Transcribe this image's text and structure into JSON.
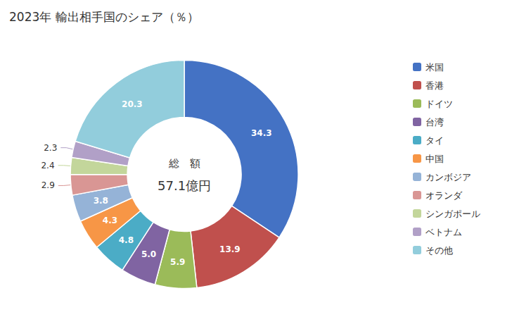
{
  "chart_data": {
    "type": "pie",
    "title": "2023年 輸出相手国のシェア（％）",
    "annotations": [
      "総　額",
      "57.1億円"
    ],
    "categories": [
      "米国",
      "香港",
      "ドイツ",
      "台湾",
      "タイ",
      "中国",
      "カンボジア",
      "オランダ",
      "シンガポール",
      "ベトナム",
      "その他"
    ],
    "values": [
      34.3,
      13.9,
      5.9,
      5.0,
      4.8,
      4.3,
      3.8,
      2.9,
      2.4,
      2.3,
      20.3
    ],
    "value_labels": [
      "34.3",
      "13.9",
      "5.9",
      "5.0",
      "4.8",
      "4.3",
      "3.8",
      "2.9",
      "2.4",
      "2.3",
      "20.3"
    ],
    "colors": [
      "#4472C4",
      "#C0504D",
      "#9BBB59",
      "#8064A2",
      "#4BACC6",
      "#F79646",
      "#95B3D7",
      "#D99694",
      "#C3D69B",
      "#B1A0C7",
      "#92CDDC"
    ],
    "data_labels": true,
    "legend": "right"
  }
}
